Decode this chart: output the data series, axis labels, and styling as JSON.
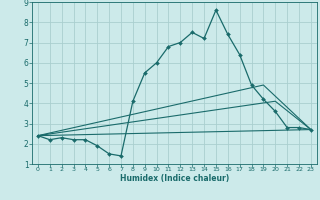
{
  "xlabel": "Humidex (Indice chaleur)",
  "background_color": "#cceaea",
  "grid_color": "#aacfcf",
  "line_color": "#1a6b6b",
  "xlim": [
    -0.5,
    23.5
  ],
  "ylim": [
    1,
    9
  ],
  "xticks": [
    0,
    1,
    2,
    3,
    4,
    5,
    6,
    7,
    8,
    9,
    10,
    11,
    12,
    13,
    14,
    15,
    16,
    17,
    18,
    19,
    20,
    21,
    22,
    23
  ],
  "yticks": [
    1,
    2,
    3,
    4,
    5,
    6,
    7,
    8,
    9
  ],
  "main_line_x": [
    0,
    1,
    2,
    3,
    4,
    5,
    6,
    7,
    8,
    9,
    10,
    11,
    12,
    13,
    14,
    15,
    16,
    17,
    18,
    19,
    20,
    21,
    22,
    23
  ],
  "main_line_y": [
    2.4,
    2.2,
    2.3,
    2.2,
    2.2,
    1.9,
    1.5,
    1.4,
    4.1,
    5.5,
    6.0,
    6.8,
    7.0,
    7.5,
    7.2,
    8.6,
    7.4,
    6.4,
    4.9,
    4.2,
    3.6,
    2.8,
    2.8,
    2.7
  ],
  "line2_x": [
    0,
    23
  ],
  "line2_y": [
    2.4,
    2.7
  ],
  "line3_x": [
    0,
    20,
    23
  ],
  "line3_y": [
    2.4,
    4.1,
    2.7
  ],
  "line4_x": [
    0,
    19,
    23
  ],
  "line4_y": [
    2.4,
    4.9,
    2.7
  ]
}
